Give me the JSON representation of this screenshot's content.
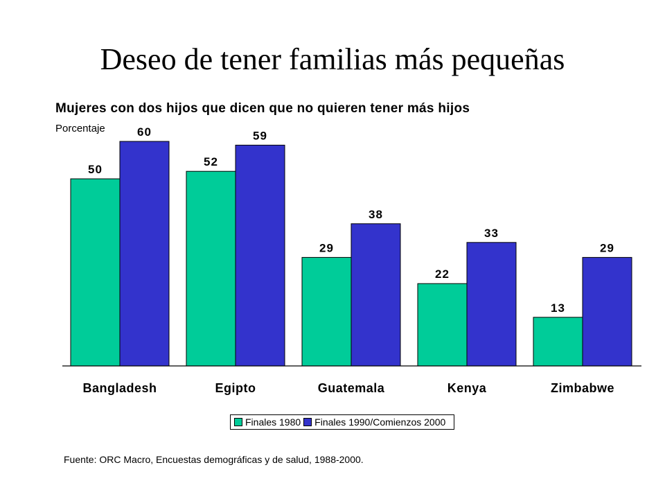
{
  "title": "Deseo de tener familias más pequeñas",
  "subtitle": "Mujeres con dos hijos que dicen que no quieren tener más hijos",
  "source": "Fuente: ORC Macro, Encuestas demográficas y de salud, 1988-2000.",
  "chart_data": {
    "type": "bar",
    "ylabel": "Porcentaje",
    "categories": [
      "Bangladesh",
      "Egipto",
      "Guatemala",
      "Kenya",
      "Zimbabwe"
    ],
    "series": [
      {
        "name": "Finales 1980",
        "values": [
          50,
          52,
          29,
          22,
          13
        ],
        "color": "#00cc99"
      },
      {
        "name": "Finales 1990/Comienzos 2000",
        "values": [
          60,
          59,
          38,
          33,
          29
        ],
        "color": "#3333cc"
      }
    ],
    "ylim": [
      0,
      60
    ],
    "grid": false,
    "legend_position": "bottom"
  }
}
